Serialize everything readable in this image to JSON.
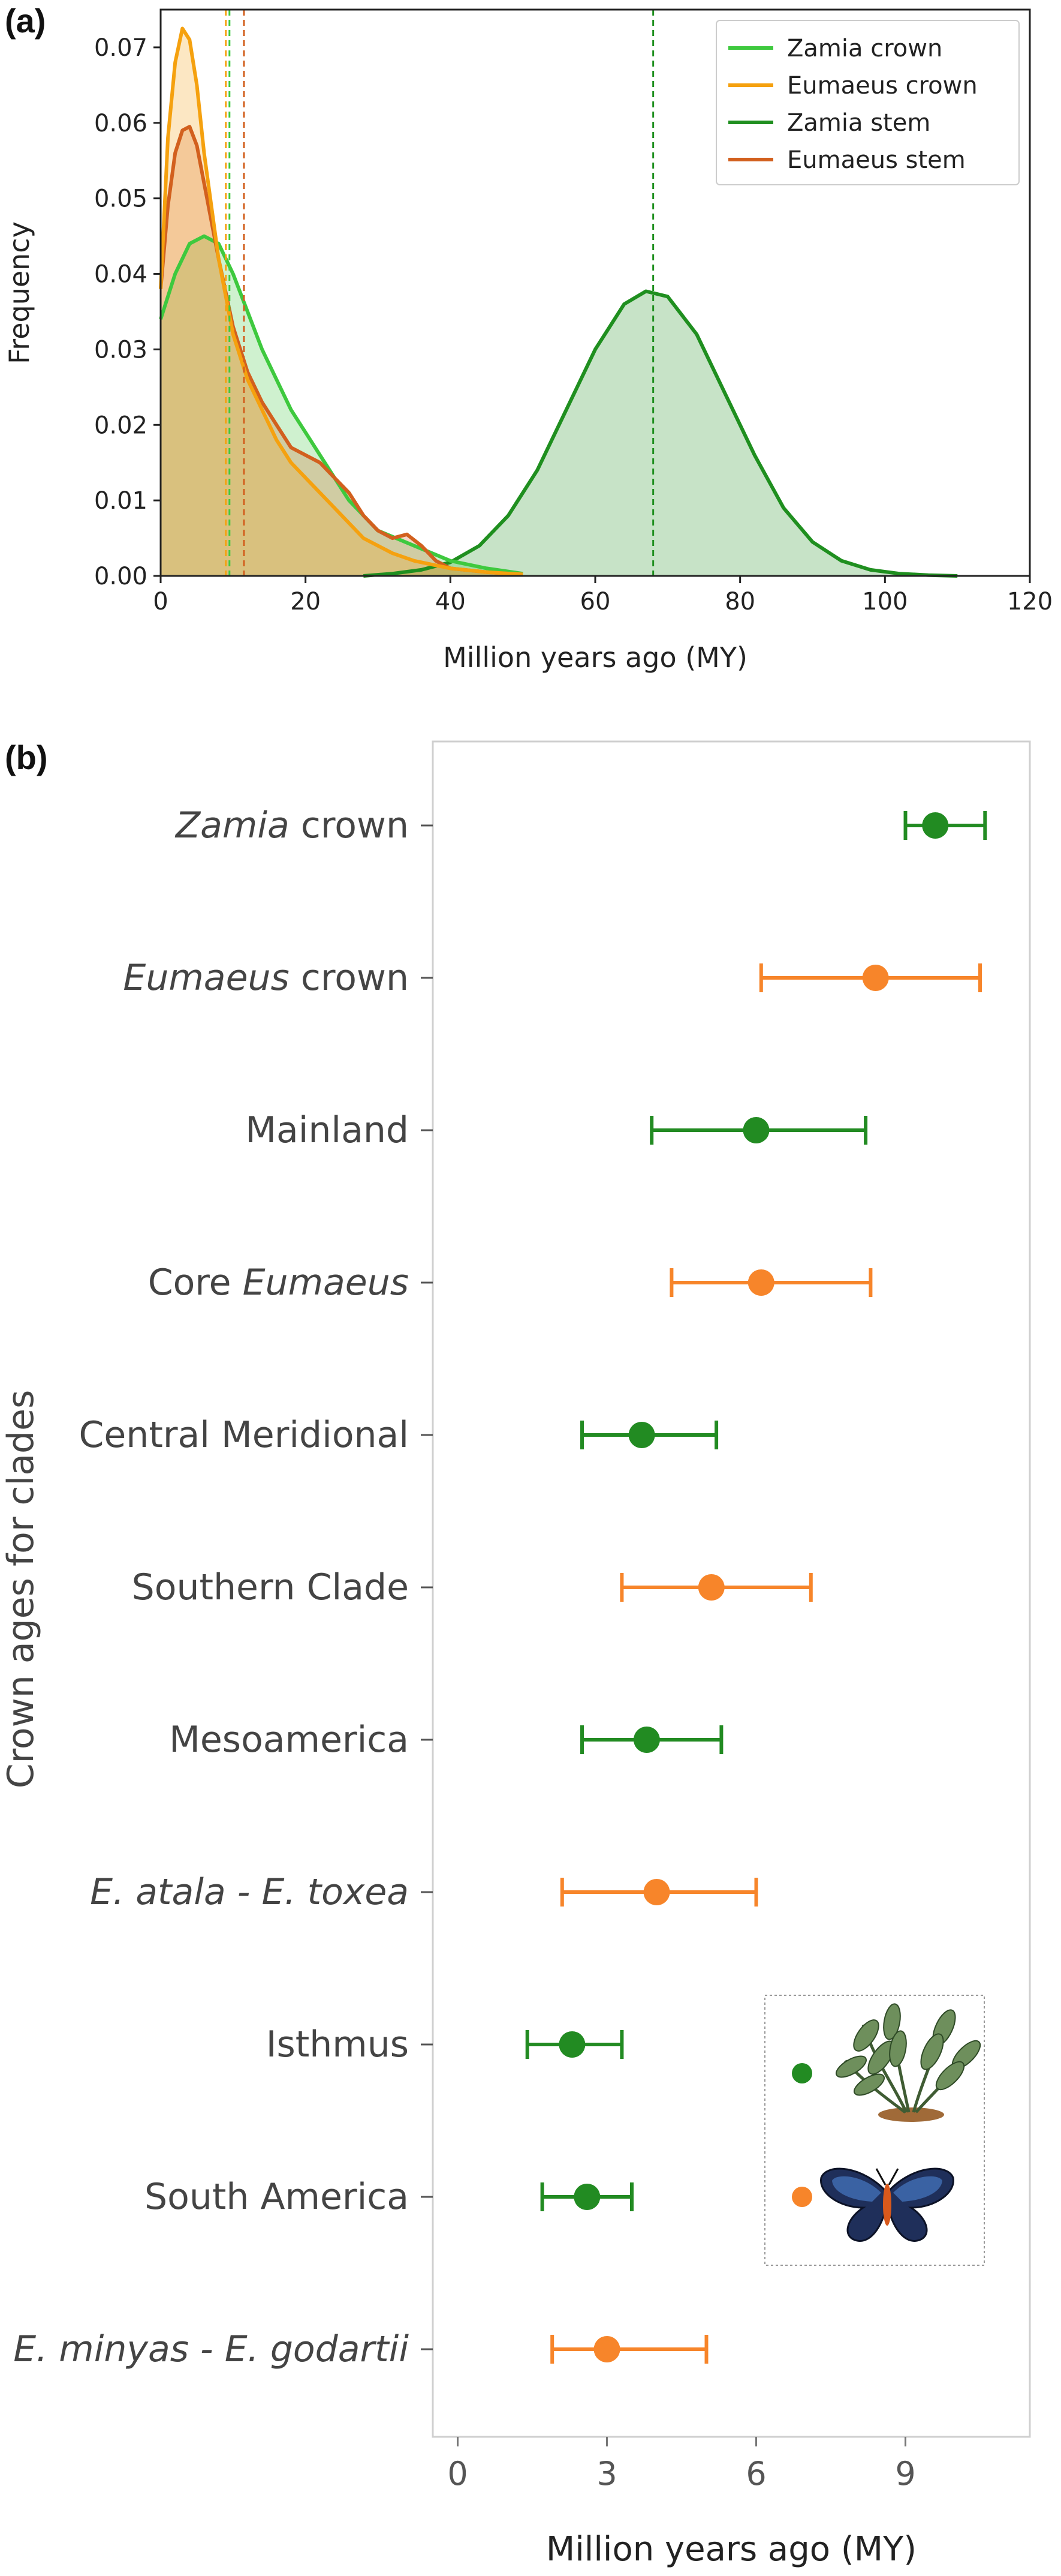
{
  "panel_a": {
    "label": "(a)",
    "legend": [
      "Zamia crown",
      "Eumaeus crown",
      "Zamia stem",
      "Eumaeus stem"
    ]
  },
  "panel_b": {
    "label": "(b)"
  },
  "colors": {
    "zamia_crown": "#3ec93e",
    "eumaeus_crown": "#f5a10f",
    "zamia_stem": "#1f8f1f",
    "eumaeus_stem": "#d2601e",
    "zamia_points": "#228b22",
    "eumaeus_points": "#f7852a"
  },
  "chart_data": [
    {
      "type": "area",
      "title": "",
      "xlabel": "Million years ago (MY)",
      "ylabel": "Frequency",
      "xlim": [
        0,
        120
      ],
      "ylim": [
        0,
        0.075
      ],
      "xticks": [
        "0",
        "20",
        "40",
        "60",
        "80",
        "100",
        "120"
      ],
      "yticks": [
        "0.00",
        "0.01",
        "0.02",
        "0.03",
        "0.04",
        "0.05",
        "0.06",
        "0.07"
      ],
      "legend_position": "top-right",
      "vlines": [
        {
          "series": "Zamia crown",
          "x": 9.5
        },
        {
          "series": "Eumaeus crown",
          "x": 9.0
        },
        {
          "series": "Zamia stem",
          "x": 68
        },
        {
          "series": "Eumaeus stem",
          "x": 11.5
        }
      ],
      "series": [
        {
          "name": "Zamia crown",
          "x": [
            0,
            2,
            4,
            6,
            8,
            10,
            12,
            14,
            16,
            18,
            20,
            22,
            24,
            26,
            28,
            30,
            35,
            40,
            45,
            50
          ],
          "y": [
            0.034,
            0.04,
            0.044,
            0.045,
            0.044,
            0.04,
            0.035,
            0.03,
            0.026,
            0.022,
            0.019,
            0.016,
            0.013,
            0.01,
            0.008,
            0.006,
            0.004,
            0.002,
            0.001,
            0.0003
          ]
        },
        {
          "name": "Eumaeus crown",
          "x": [
            0,
            1,
            2,
            3,
            4,
            5,
            6,
            8,
            10,
            12,
            14,
            16,
            18,
            20,
            22,
            24,
            26,
            28,
            30,
            32,
            35,
            40,
            45,
            50
          ],
          "y": [
            0.038,
            0.058,
            0.068,
            0.0725,
            0.071,
            0.065,
            0.056,
            0.042,
            0.032,
            0.026,
            0.022,
            0.018,
            0.015,
            0.013,
            0.011,
            0.009,
            0.007,
            0.005,
            0.004,
            0.003,
            0.002,
            0.001,
            0.0005,
            0.0002
          ]
        },
        {
          "name": "Zamia stem",
          "x": [
            28,
            32,
            36,
            40,
            44,
            48,
            52,
            56,
            60,
            64,
            67,
            70,
            74,
            78,
            82,
            86,
            90,
            94,
            98,
            102,
            106,
            110
          ],
          "y": [
            0.0,
            0.0003,
            0.0008,
            0.0018,
            0.004,
            0.008,
            0.014,
            0.022,
            0.03,
            0.036,
            0.0377,
            0.037,
            0.032,
            0.024,
            0.016,
            0.009,
            0.0045,
            0.002,
            0.0008,
            0.0003,
            0.0001,
            0.0
          ]
        },
        {
          "name": "Eumaeus stem",
          "x": [
            0,
            1,
            2,
            3,
            4,
            5,
            6,
            8,
            10,
            12,
            14,
            16,
            18,
            20,
            22,
            24,
            26,
            28,
            30,
            32,
            34,
            36,
            38,
            40,
            45,
            50
          ],
          "y": [
            0.038,
            0.049,
            0.056,
            0.059,
            0.0595,
            0.057,
            0.052,
            0.042,
            0.033,
            0.027,
            0.023,
            0.02,
            0.017,
            0.016,
            0.015,
            0.013,
            0.011,
            0.008,
            0.006,
            0.005,
            0.0055,
            0.004,
            0.002,
            0.001,
            0.0005,
            0.0002
          ]
        }
      ]
    },
    {
      "type": "scatter",
      "title": "",
      "xlabel": "Million years ago (MY)",
      "ylabel": "Crown ages for clades",
      "xlim": [
        -0.5,
        11.5
      ],
      "xticks": [
        "0",
        "3",
        "6",
        "9"
      ],
      "categories": [
        "Zamia crown",
        "Eumaeus crown",
        "Mainland",
        "Core Eumaeus",
        "Central Meridional",
        "Southern Clade",
        "Mesoamerica",
        "E. atala - E. toxea",
        "Isthmus",
        "South America",
        "E. minyas - E. godartii"
      ],
      "category_italic": [
        [
          "Zamia",
          " crown"
        ],
        [
          "Eumaeus",
          " crown"
        ],
        [
          "",
          "Mainland"
        ],
        [
          "Core ",
          "Eumaeus"
        ],
        [
          "",
          "Central Meridional"
        ],
        [
          "",
          "Southern Clade"
        ],
        [
          "",
          "Mesoamerica"
        ],
        [
          "E. atala - E. toxea",
          ""
        ],
        [
          "",
          "Isthmus"
        ],
        [
          "",
          "South America"
        ],
        [
          "E. minyas - E. godartii",
          ""
        ]
      ],
      "points": [
        {
          "group": "Zamia",
          "mean": 9.6,
          "low": 9.0,
          "high": 10.6
        },
        {
          "group": "Eumaeus",
          "mean": 8.4,
          "low": 6.1,
          "high": 10.5
        },
        {
          "group": "Zamia",
          "mean": 6.0,
          "low": 3.9,
          "high": 8.2
        },
        {
          "group": "Eumaeus",
          "mean": 6.1,
          "low": 4.3,
          "high": 8.3
        },
        {
          "group": "Zamia",
          "mean": 3.7,
          "low": 2.5,
          "high": 5.2
        },
        {
          "group": "Eumaeus",
          "mean": 5.1,
          "low": 3.3,
          "high": 7.1
        },
        {
          "group": "Zamia",
          "mean": 3.8,
          "low": 2.5,
          "high": 5.3
        },
        {
          "group": "Eumaeus",
          "mean": 4.0,
          "low": 2.1,
          "high": 6.0
        },
        {
          "group": "Zamia",
          "mean": 2.3,
          "low": 1.4,
          "high": 3.3
        },
        {
          "group": "Zamia",
          "mean": 2.6,
          "low": 1.7,
          "high": 3.5
        },
        {
          "group": "Eumaeus",
          "mean": 3.0,
          "low": 1.9,
          "high": 5.0
        }
      ]
    }
  ]
}
